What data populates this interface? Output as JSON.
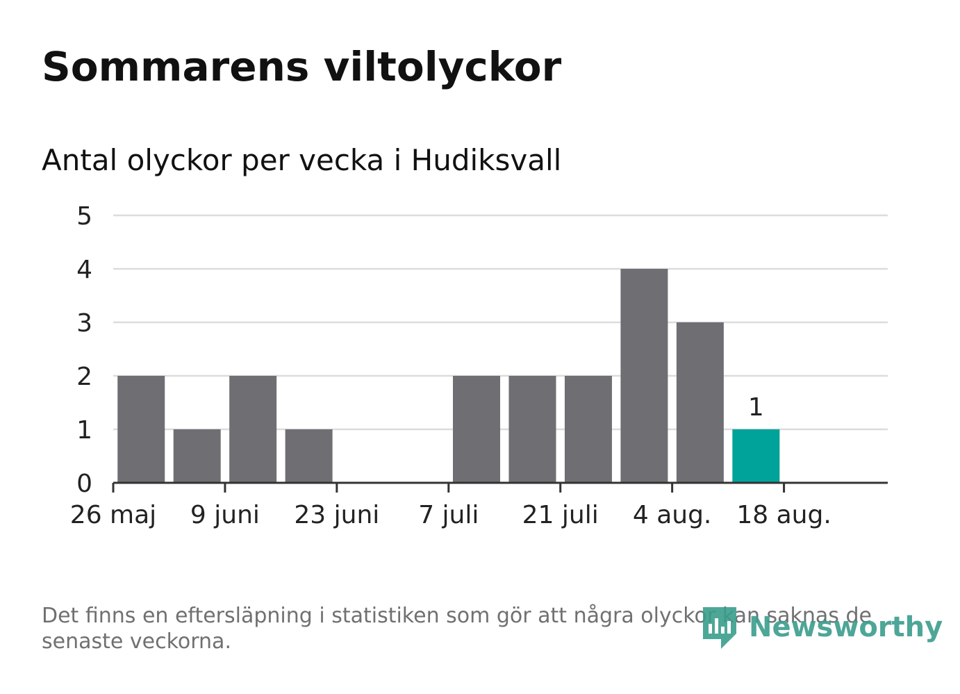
{
  "title": "Sommarens viltolyckor",
  "subtitle": "Antal olyckor per vecka i Hudiksvall",
  "footnote": "Det finns en eftersläpning i statistiken som gör att några olyckor kan saknas de senaste veckorna.",
  "logo": {
    "text": "Newsworthy",
    "icon": "bar-chart-shield-icon",
    "color": "#3a9d8c"
  },
  "colors": {
    "bar": "#6f6e73",
    "highlight": "#00a39a",
    "grid": "#dcdcdc",
    "axis": "#333333"
  },
  "chart_data": {
    "type": "bar",
    "title": "Sommarens viltolyckor",
    "subtitle": "Antal olyckor per vecka i Hudiksvall",
    "x_type": "date",
    "x_tick_labels": [
      "26 maj",
      "9 juni",
      "23 juni",
      "7 juli",
      "21 juli",
      "4 aug.",
      "18 aug."
    ],
    "x_tick_dates": [
      "2019-05-26",
      "2019-06-09",
      "2019-06-23",
      "2019-07-07",
      "2019-07-21",
      "2019-08-04",
      "2019-08-18"
    ],
    "x_range": [
      "2019-05-26",
      "2019-08-31"
    ],
    "series": [
      {
        "weeks": [
          "2019-06-02",
          "2019-06-09",
          "2019-06-16",
          "2019-06-23",
          "2019-06-30",
          "2019-07-07",
          "2019-07-14",
          "2019-07-21",
          "2019-07-28",
          "2019-08-04",
          "2019-08-11",
          "2019-08-18"
        ],
        "values": [
          2,
          1,
          2,
          1,
          0,
          0,
          2,
          2,
          2,
          4,
          3,
          1
        ]
      }
    ],
    "highlight_index": 11,
    "data_labels": [
      {
        "index": 11,
        "text": "1"
      }
    ],
    "ylim": [
      0,
      5
    ],
    "y_ticks": [
      0,
      1,
      2,
      3,
      4,
      5
    ],
    "grid": true,
    "legend": false
  }
}
